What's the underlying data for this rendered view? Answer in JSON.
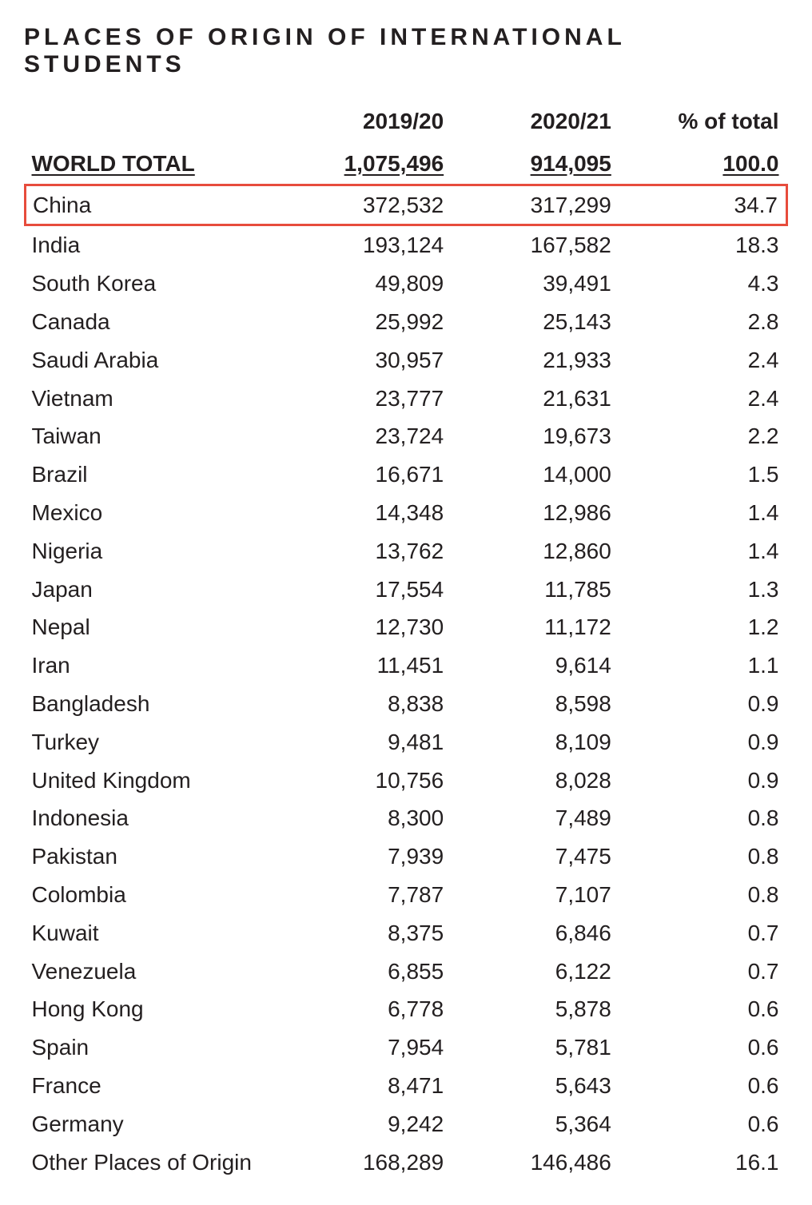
{
  "title": "PLACES OF ORIGIN OF INTERNATIONAL STUDENTS",
  "table": {
    "type": "table",
    "columns": [
      "",
      "2019/20",
      "2020/21",
      "% of total"
    ],
    "world_total": {
      "label": "WORLD TOTAL",
      "y2019_20": "1,075,496",
      "y2020_21": "914,095",
      "pct": "100.0"
    },
    "highlight_row_index": 0,
    "highlight_color": "#e74c3c",
    "background_color": "#ffffff",
    "text_color": "#231f20",
    "title_fontsize": 30,
    "body_fontsize": 28,
    "rows": [
      {
        "country": "China",
        "y2019_20": "372,532",
        "y2020_21": "317,299",
        "pct": "34.7"
      },
      {
        "country": "India",
        "y2019_20": "193,124",
        "y2020_21": "167,582",
        "pct": "18.3"
      },
      {
        "country": "South Korea",
        "y2019_20": "49,809",
        "y2020_21": "39,491",
        "pct": "4.3"
      },
      {
        "country": "Canada",
        "y2019_20": "25,992",
        "y2020_21": "25,143",
        "pct": "2.8"
      },
      {
        "country": "Saudi Arabia",
        "y2019_20": "30,957",
        "y2020_21": "21,933",
        "pct": "2.4"
      },
      {
        "country": "Vietnam",
        "y2019_20": "23,777",
        "y2020_21": "21,631",
        "pct": "2.4"
      },
      {
        "country": "Taiwan",
        "y2019_20": "23,724",
        "y2020_21": "19,673",
        "pct": "2.2"
      },
      {
        "country": "Brazil",
        "y2019_20": "16,671",
        "y2020_21": "14,000",
        "pct": "1.5"
      },
      {
        "country": "Mexico",
        "y2019_20": "14,348",
        "y2020_21": "12,986",
        "pct": "1.4"
      },
      {
        "country": "Nigeria",
        "y2019_20": "13,762",
        "y2020_21": "12,860",
        "pct": "1.4"
      },
      {
        "country": "Japan",
        "y2019_20": "17,554",
        "y2020_21": "11,785",
        "pct": "1.3"
      },
      {
        "country": "Nepal",
        "y2019_20": "12,730",
        "y2020_21": "11,172",
        "pct": "1.2"
      },
      {
        "country": "Iran",
        "y2019_20": "11,451",
        "y2020_21": "9,614",
        "pct": "1.1"
      },
      {
        "country": "Bangladesh",
        "y2019_20": "8,838",
        "y2020_21": "8,598",
        "pct": "0.9"
      },
      {
        "country": "Turkey",
        "y2019_20": "9,481",
        "y2020_21": "8,109",
        "pct": "0.9"
      },
      {
        "country": "United Kingdom",
        "y2019_20": "10,756",
        "y2020_21": "8,028",
        "pct": "0.9"
      },
      {
        "country": "Indonesia",
        "y2019_20": "8,300",
        "y2020_21": "7,489",
        "pct": "0.8"
      },
      {
        "country": "Pakistan",
        "y2019_20": "7,939",
        "y2020_21": "7,475",
        "pct": "0.8"
      },
      {
        "country": "Colombia",
        "y2019_20": "7,787",
        "y2020_21": "7,107",
        "pct": "0.8"
      },
      {
        "country": "Kuwait",
        "y2019_20": "8,375",
        "y2020_21": "6,846",
        "pct": "0.7"
      },
      {
        "country": "Venezuela",
        "y2019_20": "6,855",
        "y2020_21": "6,122",
        "pct": "0.7"
      },
      {
        "country": "Hong Kong",
        "y2019_20": "6,778",
        "y2020_21": "5,878",
        "pct": "0.6"
      },
      {
        "country": "Spain",
        "y2019_20": "7,954",
        "y2020_21": "5,781",
        "pct": "0.6"
      },
      {
        "country": "France",
        "y2019_20": "8,471",
        "y2020_21": "5,643",
        "pct": "0.6"
      },
      {
        "country": "Germany",
        "y2019_20": "9,242",
        "y2020_21": "5,364",
        "pct": "0.6"
      },
      {
        "country": "Other Places of Origin",
        "y2019_20": "168,289",
        "y2020_21": "146,486",
        "pct": "16.1"
      }
    ]
  }
}
